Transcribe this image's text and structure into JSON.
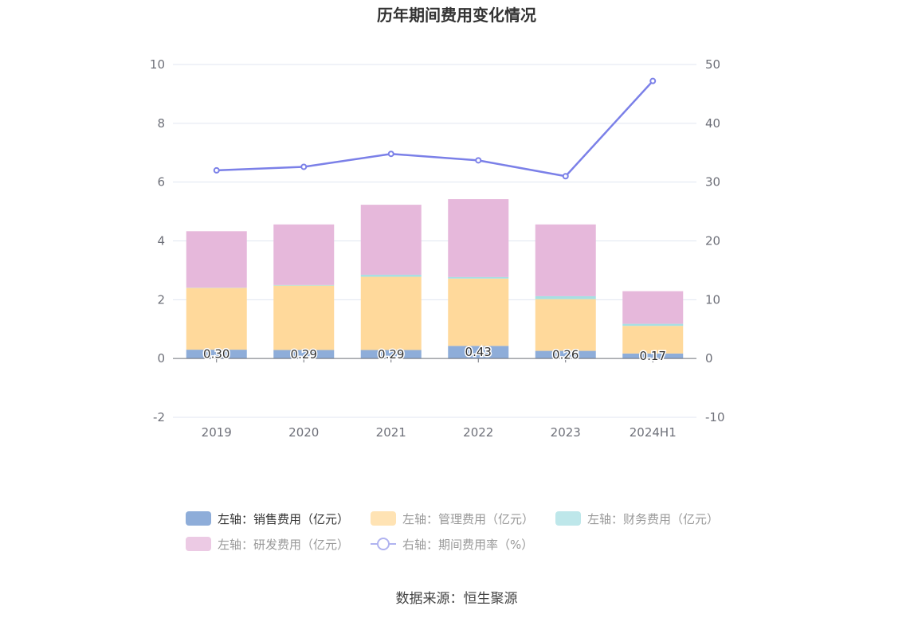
{
  "chart_data": {
    "type": "bar",
    "title": "历年期间费用变化情况",
    "categories": [
      "2019",
      "2020",
      "2021",
      "2022",
      "2023",
      "2024H1"
    ],
    "stacked": true,
    "left_axis": {
      "min": -2,
      "max": 10,
      "ticks": [
        "-2",
        "0",
        "2",
        "4",
        "6",
        "8",
        "10"
      ]
    },
    "right_axis": {
      "min": -10,
      "max": 50,
      "ticks": [
        "-10",
        "0",
        "10",
        "20",
        "30",
        "40",
        "50"
      ]
    },
    "grid": true,
    "legend_position": "bottom",
    "series": [
      {
        "name": "左轴：销售费用（亿元）",
        "type": "bar",
        "axis": "left",
        "color": "#8eadd9",
        "values": [
          0.3,
          0.29,
          0.29,
          0.43,
          0.26,
          0.17
        ],
        "labels": [
          "0.30",
          "0.29",
          "0.29",
          "0.43",
          "0.26",
          "0.17"
        ]
      },
      {
        "name": "左轴：管理费用（亿元）",
        "type": "bar",
        "axis": "left",
        "color": "#ffd99b",
        "values": [
          2.1,
          2.19,
          2.49,
          2.29,
          1.76,
          0.94
        ]
      },
      {
        "name": "左轴：财务费用（亿元）",
        "type": "bar",
        "axis": "left",
        "color": "#a8dfe3",
        "values": [
          0.01,
          0.02,
          0.07,
          0.05,
          0.1,
          0.07
        ]
      },
      {
        "name": "左轴：研发费用（亿元）",
        "type": "bar",
        "axis": "left",
        "color": "#e6b8db",
        "values": [
          1.92,
          2.06,
          2.38,
          2.65,
          2.44,
          1.11
        ]
      },
      {
        "name": "右轴：期间费用率（%）",
        "type": "line",
        "axis": "right",
        "color": "#7b80e8",
        "values": [
          32.0,
          32.6,
          34.8,
          33.7,
          31.0,
          47.2
        ]
      }
    ]
  },
  "source": "数据来源：恒生聚源"
}
